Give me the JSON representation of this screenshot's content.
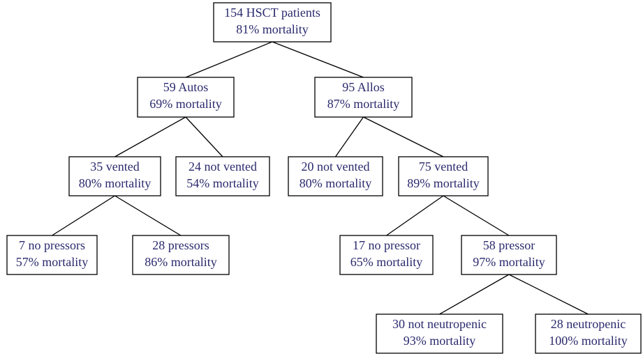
{
  "nodes": [
    {
      "lines": [
        "154 HSCT patients",
        "81% mortality"
      ]
    },
    {
      "lines": [
        "59 Autos",
        "69% mortality"
      ]
    },
    {
      "lines": [
        "95 Allos",
        "87% mortality"
      ]
    },
    {
      "lines": [
        "35 vented",
        "80% mortality"
      ]
    },
    {
      "lines": [
        "24 not vented",
        "54% mortality"
      ]
    },
    {
      "lines": [
        "20 not vented",
        "80% mortality"
      ]
    },
    {
      "lines": [
        "75 vented",
        "89% mortality"
      ]
    },
    {
      "lines": [
        "7 no pressors",
        "57% mortality"
      ]
    },
    {
      "lines": [
        "28 pressors",
        "86% mortality"
      ]
    },
    {
      "lines": [
        "17 no pressor",
        "65% mortality"
      ]
    },
    {
      "lines": [
        "58 pressor",
        "97% mortality"
      ]
    },
    {
      "lines": [
        "30 not neutropenic",
        "93% mortality"
      ]
    },
    {
      "lines": [
        "28 neutropenic",
        "100% mortality"
      ]
    }
  ]
}
